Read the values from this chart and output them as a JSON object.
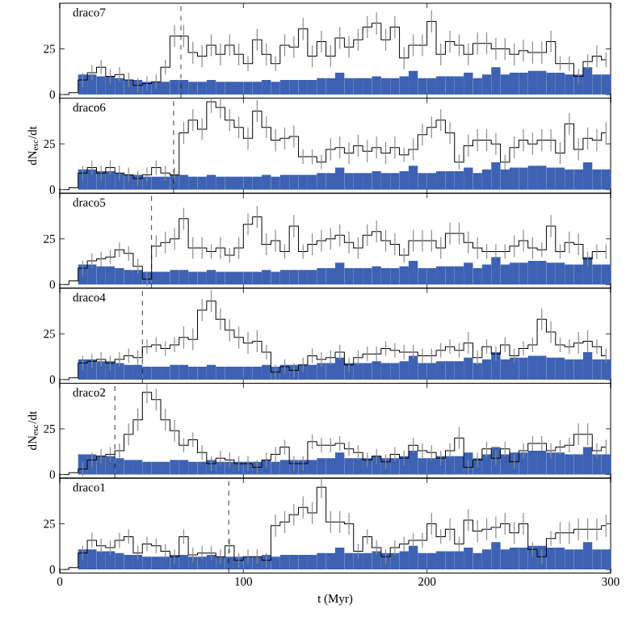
{
  "chart_data": [
    {
      "type": "histogram",
      "title": "draco7",
      "bins": [
        0,
        5,
        10,
        15,
        20,
        25,
        30,
        35,
        40,
        45,
        50,
        55,
        60,
        65,
        70,
        75,
        80,
        85,
        90,
        95,
        100,
        105,
        110,
        115,
        120,
        125,
        130,
        135,
        140,
        145,
        150,
        155,
        160,
        165,
        170,
        175,
        180,
        185,
        190,
        195,
        200,
        205,
        210,
        215,
        220,
        225,
        230,
        235,
        240,
        245,
        250,
        255,
        260,
        265,
        270,
        275,
        280,
        285,
        290,
        295,
        300
      ],
      "xlim": [
        0,
        300
      ],
      "xticks": [
        0,
        100,
        200,
        300
      ],
      "ylim": [
        -2,
        50
      ],
      "yticks": [
        0,
        25
      ],
      "tick_labels": "y",
      "ref_lines": [
        {
          "axis": "x",
          "value": 66,
          "line_style": "dashed"
        }
      ],
      "series": [
        {
          "color": "#3d62b3",
          "values": [
            0,
            0,
            11,
            11,
            10,
            10,
            9,
            8,
            8,
            7,
            7,
            7,
            8,
            8,
            7,
            7,
            8,
            7,
            7,
            7,
            7,
            7,
            8,
            7,
            8,
            8,
            8,
            8,
            9,
            9,
            12,
            9,
            9,
            9,
            10,
            9,
            9,
            10,
            13,
            9,
            9,
            10,
            10,
            10,
            12,
            9,
            11,
            15,
            11,
            12,
            12,
            13,
            13,
            12,
            12,
            11,
            11,
            15,
            11,
            11
          ]
        },
        {
          "type": "step",
          "color": "#000000",
          "x": [
            2.5,
            7.5,
            12.5,
            17.5,
            22.5,
            27.5,
            32.5,
            37.5,
            42.5,
            47.5,
            52.5,
            57.5,
            62.5,
            67.5,
            72.5,
            77.5,
            82.5,
            87.5,
            92.5,
            97.5,
            102.5,
            107.5,
            112.5,
            117.5,
            122.5,
            127.5,
            132.5,
            137.5,
            142.5,
            147.5,
            152.5,
            157.5,
            162.5,
            167.5,
            172.5,
            177.5,
            182.5,
            187.5,
            192.5,
            197.5,
            202.5,
            207.5,
            212.5,
            217.5,
            222.5,
            227.5,
            232.5,
            237.5,
            242.5,
            247.5,
            252.5,
            257.5,
            262.5,
            267.5,
            272.5,
            277.5,
            282.5,
            287.5,
            292.5,
            297.5
          ],
          "values": [
            0,
            1,
            8,
            12,
            15,
            10,
            11,
            8,
            5,
            6,
            7,
            15,
            32,
            32,
            23,
            21,
            27,
            22,
            27,
            22,
            17,
            30,
            22,
            17,
            27,
            26,
            36,
            21,
            29,
            21,
            31,
            26,
            30,
            37,
            39,
            30,
            37,
            20,
            27,
            27,
            40,
            22,
            29,
            27,
            22,
            28,
            28,
            25,
            25,
            22,
            24,
            23,
            23,
            29,
            17,
            17,
            10,
            18,
            21,
            19
          ],
          "errors": [
            null,
            null,
            4,
            4,
            4,
            4,
            4,
            4,
            4,
            4,
            4,
            4,
            6,
            6,
            6,
            6,
            6,
            6,
            6,
            6,
            4,
            6,
            6,
            4,
            6,
            6,
            6,
            6,
            6,
            6,
            6,
            6,
            6,
            6,
            6,
            6,
            6,
            6,
            6,
            6,
            6,
            6,
            6,
            6,
            6,
            6,
            6,
            6,
            6,
            6,
            6,
            6,
            6,
            6,
            4,
            4,
            4,
            4,
            6,
            4
          ]
        }
      ]
    },
    {
      "type": "histogram",
      "title": "draco6",
      "ylabel": "dN$_{esc}$/dt",
      "bins": [
        0,
        5,
        10,
        15,
        20,
        25,
        30,
        35,
        40,
        45,
        50,
        55,
        60,
        65,
        70,
        75,
        80,
        85,
        90,
        95,
        100,
        105,
        110,
        115,
        120,
        125,
        130,
        135,
        140,
        145,
        150,
        155,
        160,
        165,
        170,
        175,
        180,
        185,
        190,
        195,
        200,
        205,
        210,
        215,
        220,
        225,
        230,
        235,
        240,
        245,
        250,
        255,
        260,
        265,
        270,
        275,
        280,
        285,
        290,
        295,
        300
      ],
      "xlim": [
        0,
        300
      ],
      "xticks": [
        0,
        100,
        200,
        300
      ],
      "ylim": [
        -2,
        50
      ],
      "yticks": [
        0,
        25
      ],
      "tick_labels": "y",
      "ref_lines": [
        {
          "axis": "x",
          "value": 62,
          "line_style": "dashed"
        }
      ],
      "series": [
        {
          "color": "#3d62b3",
          "values": [
            0,
            0,
            11,
            11,
            10,
            10,
            9,
            8,
            8,
            7,
            7,
            7,
            8,
            8,
            7,
            7,
            8,
            7,
            7,
            7,
            7,
            7,
            8,
            7,
            8,
            8,
            8,
            8,
            9,
            9,
            12,
            9,
            9,
            9,
            10,
            9,
            9,
            10,
            13,
            9,
            9,
            10,
            10,
            10,
            12,
            9,
            11,
            15,
            11,
            12,
            12,
            13,
            13,
            12,
            12,
            11,
            11,
            15,
            11,
            11
          ]
        },
        {
          "type": "step",
          "color": "#000000",
          "x": [
            2.5,
            7.5,
            12.5,
            17.5,
            22.5,
            27.5,
            32.5,
            37.5,
            42.5,
            47.5,
            52.5,
            57.5,
            62.5,
            67.5,
            72.5,
            77.5,
            82.5,
            87.5,
            92.5,
            97.5,
            102.5,
            107.5,
            112.5,
            117.5,
            122.5,
            127.5,
            132.5,
            137.5,
            142.5,
            147.5,
            152.5,
            157.5,
            162.5,
            167.5,
            172.5,
            177.5,
            182.5,
            187.5,
            192.5,
            197.5,
            202.5,
            207.5,
            212.5,
            217.5,
            222.5,
            227.5,
            232.5,
            237.5,
            242.5,
            247.5,
            252.5,
            257.5,
            262.5,
            267.5,
            272.5,
            277.5,
            282.5,
            287.5,
            292.5,
            297.5
          ],
          "values": [
            0,
            1,
            9,
            12,
            9,
            12,
            9,
            8,
            6,
            8,
            12,
            9,
            8,
            31,
            38,
            33,
            48,
            45,
            38,
            34,
            28,
            43,
            34,
            27,
            28,
            29,
            18,
            18,
            15,
            22,
            23,
            20,
            24,
            21,
            23,
            20,
            23,
            19,
            22,
            30,
            34,
            38,
            31,
            15,
            24,
            27,
            27,
            25,
            15,
            23,
            27,
            25,
            27,
            27,
            20,
            36,
            22,
            28,
            27,
            31
          ],
          "errors": [
            null,
            null,
            4,
            4,
            4,
            4,
            4,
            4,
            4,
            4,
            4,
            4,
            4,
            6,
            6,
            6,
            6,
            6,
            6,
            6,
            6,
            6,
            6,
            6,
            6,
            6,
            4,
            4,
            4,
            6,
            6,
            6,
            6,
            6,
            6,
            6,
            6,
            4,
            6,
            6,
            6,
            6,
            6,
            4,
            6,
            6,
            6,
            6,
            4,
            6,
            6,
            6,
            6,
            6,
            6,
            6,
            6,
            6,
            6,
            6
          ]
        }
      ]
    },
    {
      "type": "histogram",
      "title": "draco5",
      "bins": [
        0,
        5,
        10,
        15,
        20,
        25,
        30,
        35,
        40,
        45,
        50,
        55,
        60,
        65,
        70,
        75,
        80,
        85,
        90,
        95,
        100,
        105,
        110,
        115,
        120,
        125,
        130,
        135,
        140,
        145,
        150,
        155,
        160,
        165,
        170,
        175,
        180,
        185,
        190,
        195,
        200,
        205,
        210,
        215,
        220,
        225,
        230,
        235,
        240,
        245,
        250,
        255,
        260,
        265,
        270,
        275,
        280,
        285,
        290,
        295,
        300
      ],
      "xlim": [
        0,
        300
      ],
      "xticks": [
        0,
        100,
        200,
        300
      ],
      "ylim": [
        -2,
        50
      ],
      "yticks": [
        0,
        25
      ],
      "tick_labels": "y",
      "ref_lines": [
        {
          "axis": "x",
          "value": 50,
          "line_style": "dashed"
        }
      ],
      "series": [
        {
          "color": "#3d62b3",
          "values": [
            0,
            0,
            11,
            11,
            10,
            10,
            9,
            8,
            8,
            7,
            7,
            7,
            8,
            8,
            7,
            7,
            8,
            7,
            7,
            7,
            7,
            7,
            8,
            7,
            8,
            8,
            8,
            8,
            9,
            9,
            12,
            9,
            9,
            9,
            10,
            9,
            9,
            10,
            13,
            9,
            9,
            10,
            10,
            10,
            12,
            9,
            11,
            15,
            11,
            12,
            12,
            13,
            13,
            12,
            12,
            11,
            11,
            15,
            11,
            11
          ]
        },
        {
          "type": "step",
          "color": "#000000",
          "x": [
            2.5,
            7.5,
            12.5,
            17.5,
            22.5,
            27.5,
            32.5,
            37.5,
            42.5,
            47.5,
            52.5,
            57.5,
            62.5,
            67.5,
            72.5,
            77.5,
            82.5,
            87.5,
            92.5,
            97.5,
            102.5,
            107.5,
            112.5,
            117.5,
            122.5,
            127.5,
            132.5,
            137.5,
            142.5,
            147.5,
            152.5,
            157.5,
            162.5,
            167.5,
            172.5,
            177.5,
            182.5,
            187.5,
            192.5,
            197.5,
            202.5,
            207.5,
            212.5,
            217.5,
            222.5,
            227.5,
            232.5,
            237.5,
            242.5,
            247.5,
            252.5,
            257.5,
            262.5,
            267.5,
            272.5,
            277.5,
            282.5,
            287.5,
            292.5,
            297.5
          ],
          "values": [
            0,
            2,
            9,
            13,
            14,
            15,
            19,
            17,
            10,
            3,
            21,
            23,
            25,
            36,
            20,
            20,
            18,
            20,
            16,
            20,
            33,
            37,
            22,
            24,
            18,
            32,
            18,
            22,
            24,
            25,
            27,
            23,
            20,
            27,
            29,
            24,
            22,
            16,
            24,
            24,
            24,
            20,
            28,
            28,
            23,
            20,
            18,
            18,
            18,
            21,
            24,
            20,
            19,
            32,
            18,
            23,
            22,
            14,
            18,
            18
          ],
          "errors": [
            null,
            null,
            4,
            4,
            4,
            4,
            4,
            4,
            4,
            4,
            6,
            6,
            6,
            6,
            6,
            6,
            4,
            6,
            4,
            6,
            6,
            6,
            6,
            6,
            4,
            6,
            4,
            6,
            6,
            6,
            6,
            6,
            6,
            6,
            6,
            6,
            6,
            4,
            6,
            6,
            6,
            6,
            6,
            6,
            6,
            6,
            4,
            4,
            4,
            6,
            6,
            6,
            4,
            6,
            4,
            6,
            6,
            4,
            4,
            4
          ]
        }
      ]
    },
    {
      "type": "histogram",
      "title": "draco4",
      "bins": [
        0,
        5,
        10,
        15,
        20,
        25,
        30,
        35,
        40,
        45,
        50,
        55,
        60,
        65,
        70,
        75,
        80,
        85,
        90,
        95,
        100,
        105,
        110,
        115,
        120,
        125,
        130,
        135,
        140,
        145,
        150,
        155,
        160,
        165,
        170,
        175,
        180,
        185,
        190,
        195,
        200,
        205,
        210,
        215,
        220,
        225,
        230,
        235,
        240,
        245,
        250,
        255,
        260,
        265,
        270,
        275,
        280,
        285,
        290,
        295,
        300
      ],
      "xlim": [
        0,
        300
      ],
      "xticks": [
        0,
        100,
        200,
        300
      ],
      "ylim": [
        -2,
        50
      ],
      "yticks": [
        0,
        25
      ],
      "tick_labels": "y",
      "ref_lines": [
        {
          "axis": "x",
          "value": 45,
          "line_style": "dashed"
        }
      ],
      "series": [
        {
          "color": "#3d62b3",
          "values": [
            0,
            0,
            11,
            11,
            10,
            10,
            9,
            8,
            8,
            7,
            7,
            7,
            8,
            8,
            7,
            7,
            8,
            7,
            7,
            7,
            7,
            7,
            8,
            7,
            8,
            8,
            8,
            8,
            9,
            9,
            12,
            9,
            9,
            9,
            10,
            9,
            9,
            10,
            13,
            9,
            9,
            10,
            10,
            10,
            12,
            9,
            11,
            15,
            11,
            12,
            12,
            13,
            13,
            12,
            12,
            11,
            11,
            15,
            11,
            11
          ]
        },
        {
          "type": "step",
          "color": "#000000",
          "x": [
            2.5,
            7.5,
            12.5,
            17.5,
            22.5,
            27.5,
            32.5,
            37.5,
            42.5,
            47.5,
            52.5,
            57.5,
            62.5,
            67.5,
            72.5,
            77.5,
            82.5,
            87.5,
            92.5,
            97.5,
            102.5,
            107.5,
            112.5,
            117.5,
            122.5,
            127.5,
            132.5,
            137.5,
            142.5,
            147.5,
            152.5,
            157.5,
            162.5,
            167.5,
            172.5,
            177.5,
            182.5,
            187.5,
            192.5,
            197.5,
            202.5,
            207.5,
            212.5,
            217.5,
            222.5,
            227.5,
            232.5,
            237.5,
            242.5,
            247.5,
            252.5,
            257.5,
            262.5,
            267.5,
            272.5,
            277.5,
            282.5,
            287.5,
            292.5,
            297.5
          ],
          "values": [
            0,
            1,
            9,
            10,
            11,
            9,
            11,
            13,
            12,
            18,
            19,
            17,
            19,
            23,
            22,
            38,
            43,
            33,
            27,
            23,
            20,
            21,
            15,
            4,
            7,
            5,
            8,
            13,
            11,
            12,
            15,
            8,
            12,
            14,
            14,
            17,
            16,
            15,
            15,
            13,
            13,
            16,
            18,
            16,
            20,
            12,
            18,
            14,
            19,
            13,
            17,
            19,
            33,
            26,
            19,
            18,
            20,
            21,
            18,
            13
          ],
          "errors": [
            null,
            null,
            4,
            4,
            4,
            4,
            4,
            4,
            4,
            4,
            4,
            4,
            4,
            6,
            6,
            6,
            6,
            6,
            6,
            6,
            6,
            6,
            4,
            4,
            4,
            4,
            4,
            4,
            4,
            4,
            4,
            4,
            4,
            4,
            4,
            4,
            4,
            4,
            4,
            4,
            4,
            4,
            4,
            4,
            6,
            4,
            4,
            4,
            4,
            4,
            4,
            4,
            6,
            6,
            4,
            4,
            6,
            6,
            4,
            4
          ]
        }
      ]
    },
    {
      "type": "histogram",
      "title": "draco2",
      "ylabel": "dN$_{esc}$/dt",
      "bins": [
        0,
        5,
        10,
        15,
        20,
        25,
        30,
        35,
        40,
        45,
        50,
        55,
        60,
        65,
        70,
        75,
        80,
        85,
        90,
        95,
        100,
        105,
        110,
        115,
        120,
        125,
        130,
        135,
        140,
        145,
        150,
        155,
        160,
        165,
        170,
        175,
        180,
        185,
        190,
        195,
        200,
        205,
        210,
        215,
        220,
        225,
        230,
        235,
        240,
        245,
        250,
        255,
        260,
        265,
        270,
        275,
        280,
        285,
        290,
        295,
        300
      ],
      "xlim": [
        0,
        300
      ],
      "xticks": [
        0,
        100,
        200,
        300
      ],
      "ylim": [
        -2,
        50
      ],
      "yticks": [
        0,
        25
      ],
      "tick_labels": "y",
      "ref_lines": [
        {
          "axis": "x",
          "value": 30,
          "line_style": "dashed"
        }
      ],
      "series": [
        {
          "color": "#3d62b3",
          "values": [
            0,
            0,
            11,
            11,
            10,
            10,
            9,
            8,
            8,
            7,
            7,
            7,
            8,
            8,
            7,
            7,
            8,
            7,
            7,
            7,
            7,
            7,
            8,
            7,
            8,
            8,
            8,
            8,
            9,
            9,
            12,
            9,
            9,
            9,
            10,
            9,
            9,
            10,
            13,
            9,
            9,
            10,
            10,
            10,
            12,
            9,
            11,
            15,
            11,
            12,
            12,
            13,
            13,
            12,
            12,
            11,
            11,
            15,
            11,
            11
          ]
        },
        {
          "type": "step",
          "color": "#000000",
          "x": [
            2.5,
            7.5,
            12.5,
            17.5,
            22.5,
            27.5,
            32.5,
            37.5,
            42.5,
            47.5,
            52.5,
            57.5,
            62.5,
            67.5,
            72.5,
            77.5,
            82.5,
            87.5,
            92.5,
            97.5,
            102.5,
            107.5,
            112.5,
            117.5,
            122.5,
            127.5,
            132.5,
            137.5,
            142.5,
            147.5,
            152.5,
            157.5,
            162.5,
            167.5,
            172.5,
            177.5,
            182.5,
            187.5,
            192.5,
            197.5,
            202.5,
            207.5,
            212.5,
            217.5,
            222.5,
            227.5,
            232.5,
            237.5,
            242.5,
            247.5,
            252.5,
            257.5,
            262.5,
            267.5,
            272.5,
            277.5,
            282.5,
            287.5,
            292.5,
            297.5
          ],
          "values": [
            0,
            1,
            3,
            8,
            10,
            11,
            13,
            22,
            30,
            45,
            41,
            30,
            24,
            16,
            19,
            12,
            6,
            9,
            8,
            6,
            6,
            4,
            8,
            11,
            15,
            6,
            6,
            18,
            16,
            16,
            17,
            14,
            12,
            8,
            10,
            7,
            11,
            9,
            16,
            13,
            12,
            9,
            13,
            20,
            4,
            8,
            14,
            9,
            14,
            7,
            13,
            17,
            17,
            13,
            15,
            16,
            22,
            22,
            13,
            15
          ],
          "errors": [
            null,
            null,
            4,
            4,
            4,
            4,
            4,
            6,
            6,
            6,
            6,
            6,
            6,
            4,
            4,
            4,
            4,
            4,
            4,
            4,
            4,
            4,
            4,
            4,
            4,
            4,
            4,
            4,
            4,
            4,
            4,
            4,
            4,
            4,
            4,
            4,
            4,
            4,
            4,
            4,
            4,
            4,
            4,
            6,
            4,
            4,
            4,
            4,
            4,
            4,
            4,
            4,
            4,
            4,
            4,
            4,
            6,
            6,
            4,
            4
          ]
        }
      ]
    },
    {
      "type": "histogram",
      "title": "draco1",
      "xlabel": "t (Myr)",
      "bins": [
        0,
        5,
        10,
        15,
        20,
        25,
        30,
        35,
        40,
        45,
        50,
        55,
        60,
        65,
        70,
        75,
        80,
        85,
        90,
        95,
        100,
        105,
        110,
        115,
        120,
        125,
        130,
        135,
        140,
        145,
        150,
        155,
        160,
        165,
        170,
        175,
        180,
        185,
        190,
        195,
        200,
        205,
        210,
        215,
        220,
        225,
        230,
        235,
        240,
        245,
        250,
        255,
        260,
        265,
        270,
        275,
        280,
        285,
        290,
        295,
        300
      ],
      "xlim": [
        0,
        300
      ],
      "xticks": [
        0,
        100,
        200,
        300
      ],
      "ylim": [
        -2,
        50
      ],
      "yticks": [
        0,
        25
      ],
      "ref_lines": [
        {
          "axis": "x",
          "value": 92,
          "line_style": "dashed"
        }
      ],
      "series": [
        {
          "color": "#3d62b3",
          "values": [
            0,
            0,
            11,
            11,
            10,
            10,
            9,
            8,
            8,
            7,
            7,
            7,
            8,
            8,
            7,
            7,
            8,
            7,
            7,
            7,
            7,
            7,
            8,
            7,
            8,
            8,
            8,
            8,
            9,
            9,
            12,
            9,
            9,
            9,
            10,
            9,
            9,
            10,
            13,
            9,
            9,
            10,
            10,
            10,
            12,
            9,
            11,
            15,
            11,
            12,
            12,
            13,
            13,
            12,
            12,
            11,
            11,
            15,
            11,
            11
          ]
        },
        {
          "type": "step",
          "color": "#000000",
          "x": [
            2.5,
            7.5,
            12.5,
            17.5,
            22.5,
            27.5,
            32.5,
            37.5,
            42.5,
            47.5,
            52.5,
            57.5,
            62.5,
            67.5,
            72.5,
            77.5,
            82.5,
            87.5,
            92.5,
            97.5,
            102.5,
            107.5,
            112.5,
            117.5,
            122.5,
            127.5,
            132.5,
            137.5,
            142.5,
            147.5,
            152.5,
            157.5,
            162.5,
            167.5,
            172.5,
            177.5,
            182.5,
            187.5,
            192.5,
            197.5,
            202.5,
            207.5,
            212.5,
            217.5,
            222.5,
            227.5,
            232.5,
            237.5,
            242.5,
            247.5,
            252.5,
            257.5,
            262.5,
            267.5,
            272.5,
            277.5,
            282.5,
            287.5,
            292.5,
            297.5
          ],
          "values": [
            0,
            1,
            9,
            16,
            13,
            12,
            16,
            18,
            9,
            14,
            13,
            10,
            7,
            18,
            8,
            9,
            9,
            7,
            13,
            5,
            7,
            7,
            5,
            24,
            26,
            30,
            34,
            31,
            45,
            26,
            26,
            25,
            10,
            18,
            12,
            7,
            12,
            14,
            16,
            16,
            25,
            18,
            22,
            14,
            27,
            21,
            22,
            23,
            25,
            20,
            25,
            11,
            7,
            17,
            20,
            20,
            22,
            22,
            22,
            24
          ],
          "errors": [
            null,
            null,
            4,
            4,
            4,
            4,
            4,
            4,
            4,
            4,
            4,
            4,
            4,
            4,
            4,
            4,
            4,
            4,
            4,
            4,
            4,
            4,
            4,
            6,
            6,
            6,
            6,
            6,
            6,
            6,
            6,
            6,
            4,
            4,
            4,
            4,
            4,
            4,
            4,
            4,
            6,
            4,
            6,
            4,
            6,
            6,
            6,
            6,
            6,
            6,
            6,
            4,
            4,
            4,
            6,
            6,
            6,
            6,
            6,
            6
          ]
        }
      ]
    }
  ]
}
